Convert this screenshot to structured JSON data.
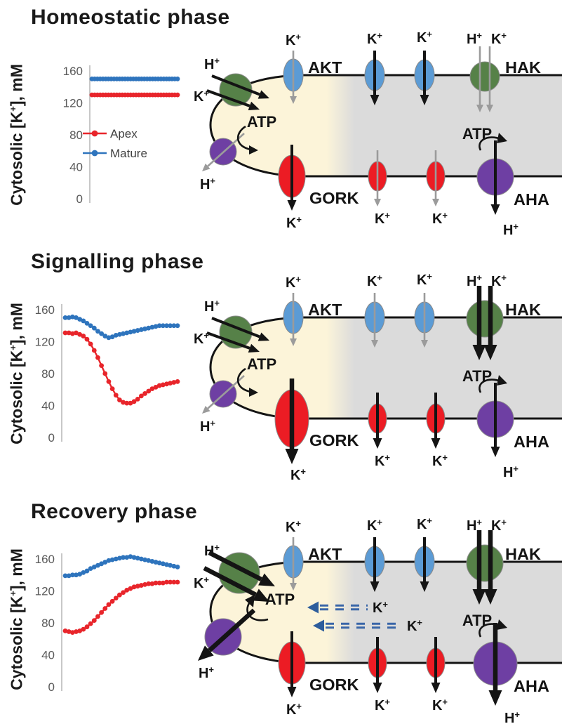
{
  "figure": {
    "y_axis_label": "Cytosolic [K+], mM",
    "legend": {
      "apex": "Apex",
      "mature": "Mature"
    },
    "labels": {
      "akt": "AKT",
      "gork": "GORK",
      "hak": "HAK",
      "aha": "AHA",
      "atp": "ATP",
      "k": "K+",
      "h": "H+"
    },
    "colors": {
      "apex_series": "#e8252b",
      "mature_series": "#2e74bd",
      "akt_channel": "#5b9bd5",
      "gork_channel": "#ec1c24",
      "hak_transporter": "#568148",
      "aha_pump": "#6e3fa3",
      "apex_zone": "#fcf4d9",
      "mature_zone": "#dbdbdb",
      "weak_arrow": "#9b9b9b",
      "strong_arrow": "#141414",
      "k_transfer_arrow": "#3a66a8",
      "k_transfer_head": "#2d5d9c",
      "tick_text": "#595959",
      "legend_text": "#3f3f3f"
    }
  },
  "phases": [
    {
      "title": "Homeostatic phase",
      "diagram": {
        "apex_hak": {
          "size": "medium",
          "flux": "active"
        },
        "apex_aha": {
          "size": "small",
          "flux": "weak"
        },
        "apex_akt": {
          "flux": "weak"
        },
        "apex_gork": {
          "size": "medium",
          "flux": "active"
        },
        "mature_akt": {
          "flux": "active"
        },
        "mature_hak": {
          "size": "small",
          "flux": "weak"
        },
        "mature_gork": {
          "flux": "weak"
        },
        "mature_aha": {
          "size": "medium",
          "flux": "active"
        },
        "k_translocation": false
      }
    },
    {
      "title": "Signalling phase",
      "diagram": {
        "apex_hak": {
          "size": "medium",
          "flux": "active"
        },
        "apex_aha": {
          "size": "small",
          "flux": "weak"
        },
        "apex_akt": {
          "flux": "weak"
        },
        "apex_gork": {
          "size": "xlarge",
          "flux": "strong"
        },
        "mature_akt": {
          "flux": "weak"
        },
        "mature_hak": {
          "size": "large",
          "flux": "strong"
        },
        "mature_gork": {
          "flux": "active"
        },
        "mature_aha": {
          "size": "medium",
          "flux": "active"
        },
        "k_translocation": false
      }
    },
    {
      "title": "Recovery phase",
      "diagram": {
        "apex_hak": {
          "size": "large",
          "flux": "strong"
        },
        "apex_aha": {
          "size": "large",
          "flux": "strong"
        },
        "apex_akt": {
          "flux": "weak"
        },
        "apex_gork": {
          "size": "medium",
          "flux": "active"
        },
        "mature_akt": {
          "flux": "active"
        },
        "mature_hak": {
          "size": "large",
          "flux": "strong"
        },
        "mature_gork": {
          "flux": "active"
        },
        "mature_aha": {
          "size": "large",
          "flux": "strong"
        },
        "k_translocation": true
      }
    }
  ],
  "chart_data": [
    {
      "type": "line",
      "title": "Homeostatic phase",
      "xlabel": "",
      "ylabel": "Cytosolic [K+], mM",
      "ylim": [
        0,
        175
      ],
      "yticks": [
        0,
        40,
        80,
        120,
        160
      ],
      "grid": false,
      "legend_visible": true,
      "legend_position": "left-middle",
      "series": [
        {
          "name": "Mature",
          "color": "#2e74bd",
          "values": [
            150,
            150,
            150,
            150,
            150,
            150,
            150,
            150,
            150,
            150,
            150,
            150,
            150,
            150,
            150,
            150,
            150,
            150,
            150,
            150,
            150,
            150,
            150,
            150,
            150,
            150,
            150,
            150,
            150,
            150,
            150,
            150
          ]
        },
        {
          "name": "Apex",
          "color": "#e8252b",
          "values": [
            130,
            130,
            130,
            130,
            130,
            130,
            130,
            130,
            130,
            130,
            130,
            130,
            130,
            130,
            130,
            130,
            130,
            130,
            130,
            130,
            130,
            130,
            130,
            130,
            130,
            130,
            130,
            130,
            130,
            130,
            130,
            130
          ]
        }
      ]
    },
    {
      "type": "line",
      "title": "Signalling phase",
      "xlabel": "",
      "ylabel": "Cytosolic [K+], mM",
      "ylim": [
        0,
        175
      ],
      "yticks": [
        0,
        40,
        80,
        120,
        160
      ],
      "grid": false,
      "legend_visible": false,
      "series": [
        {
          "name": "Mature",
          "color": "#2e74bd",
          "values": [
            150,
            150,
            151,
            150,
            148,
            146,
            143,
            140,
            137,
            133,
            130,
            127,
            125,
            126,
            128,
            129,
            130,
            131,
            132,
            133,
            134,
            135,
            136,
            137,
            138,
            139,
            140,
            140,
            140,
            140,
            140,
            140
          ]
        },
        {
          "name": "Apex",
          "color": "#e8252b",
          "values": [
            131,
            131,
            130,
            131,
            129,
            127,
            123,
            117,
            109,
            100,
            90,
            80,
            70,
            61,
            53,
            47,
            44,
            43,
            43,
            45,
            48,
            52,
            55,
            58,
            61,
            63,
            65,
            66,
            67,
            68,
            69,
            70
          ]
        }
      ]
    },
    {
      "type": "line",
      "title": "Recovery phase",
      "xlabel": "",
      "ylabel": "Cytosolic [K+], mM",
      "ylim": [
        0,
        175
      ],
      "yticks": [
        0,
        40,
        80,
        120,
        160
      ],
      "grid": false,
      "legend_visible": false,
      "series": [
        {
          "name": "Mature",
          "color": "#2e74bd",
          "values": [
            139,
            139,
            140,
            140,
            141,
            143,
            145,
            148,
            150,
            152,
            154,
            156,
            158,
            159,
            160,
            161,
            162,
            162,
            163,
            162,
            161,
            160,
            159,
            158,
            157,
            156,
            155,
            154,
            153,
            152,
            151,
            150
          ]
        },
        {
          "name": "Apex",
          "color": "#e8252b",
          "values": [
            70,
            69,
            68,
            69,
            70,
            72,
            75,
            79,
            83,
            88,
            93,
            98,
            103,
            107,
            111,
            115,
            118,
            121,
            123,
            125,
            126,
            127,
            128,
            129,
            129,
            130,
            130,
            130,
            131,
            131,
            131,
            131
          ]
        }
      ]
    }
  ]
}
